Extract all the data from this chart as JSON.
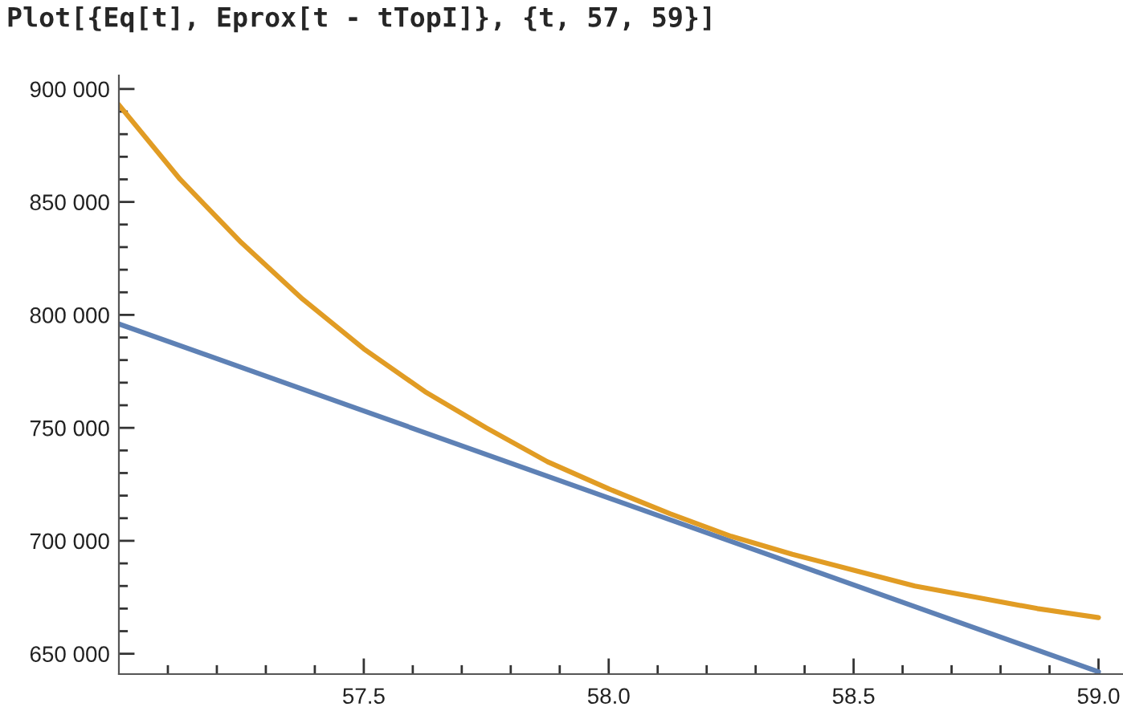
{
  "chart_data": {
    "type": "line",
    "title": "Plot[{Eq[t], Eprox[t - tTopI]}, {t, 57, 59}]",
    "series": [
      {
        "color": "#5e81b5",
        "x": [
          57,
          59
        ],
        "values": [
          796000,
          642000
        ]
      },
      {
        "color": "#e19c24",
        "x": [
          57,
          57.125,
          57.25,
          57.375,
          57.5,
          57.625,
          57.75,
          57.875,
          58.0,
          58.125,
          58.25,
          58.375,
          58.5,
          58.625,
          58.75,
          58.875,
          59
        ],
        "values": [
          893000,
          860000,
          832000,
          807000,
          785000,
          766000,
          750000,
          735000,
          723000,
          712000,
          702000,
          694000,
          687000,
          680000,
          675000,
          670000,
          666000
        ]
      }
    ],
    "xlim": [
      57,
      59.05
    ],
    "ylim": [
      641000,
      906000
    ],
    "xticks": [
      {
        "value": 57.1,
        "label": null
      },
      {
        "value": 57.2,
        "label": null
      },
      {
        "value": 57.3,
        "label": null
      },
      {
        "value": 57.4,
        "label": null
      },
      57.5,
      {
        "value": 57.6,
        "label": null
      },
      {
        "value": 57.7,
        "label": null
      },
      {
        "value": 57.8,
        "label": null
      },
      {
        "value": 57.9,
        "label": null
      },
      {
        "value": 58.0,
        "label": "58.0"
      },
      {
        "value": 58.1,
        "label": null
      },
      {
        "value": 58.2,
        "label": null
      },
      {
        "value": 58.3,
        "label": null
      },
      {
        "value": 58.4,
        "label": null
      },
      58.5,
      {
        "value": 58.6,
        "label": null
      },
      {
        "value": 58.7,
        "label": null
      },
      {
        "value": 58.8,
        "label": null
      },
      {
        "value": 58.9,
        "label": null
      },
      {
        "value": 59.0,
        "label": "59.0"
      }
    ],
    "yticks": [
      {
        "value": 650000,
        "label": "650 000"
      },
      {
        "value": 660000,
        "label": null
      },
      {
        "value": 670000,
        "label": null
      },
      {
        "value": 680000,
        "label": null
      },
      {
        "value": 690000,
        "label": null
      },
      {
        "value": 700000,
        "label": "700 000"
      },
      {
        "value": 710000,
        "label": null
      },
      {
        "value": 720000,
        "label": null
      },
      {
        "value": 730000,
        "label": null
      },
      {
        "value": 740000,
        "label": null
      },
      {
        "value": 750000,
        "label": "750 000"
      },
      {
        "value": 760000,
        "label": null
      },
      {
        "value": 770000,
        "label": null
      },
      {
        "value": 780000,
        "label": null
      },
      {
        "value": 790000,
        "label": null
      },
      {
        "value": 800000,
        "label": "800 000"
      },
      {
        "value": 810000,
        "label": null
      },
      {
        "value": 820000,
        "label": null
      },
      {
        "value": 830000,
        "label": null
      },
      {
        "value": 840000,
        "label": null
      },
      {
        "value": 850000,
        "label": "850 000"
      },
      {
        "value": 860000,
        "label": null
      },
      {
        "value": 870000,
        "label": null
      },
      {
        "value": 880000,
        "label": null
      },
      {
        "value": 890000,
        "label": null
      },
      {
        "value": 900000,
        "label": "900 000"
      }
    ],
    "grid": false,
    "marker": "none",
    "line_style": "solid"
  }
}
